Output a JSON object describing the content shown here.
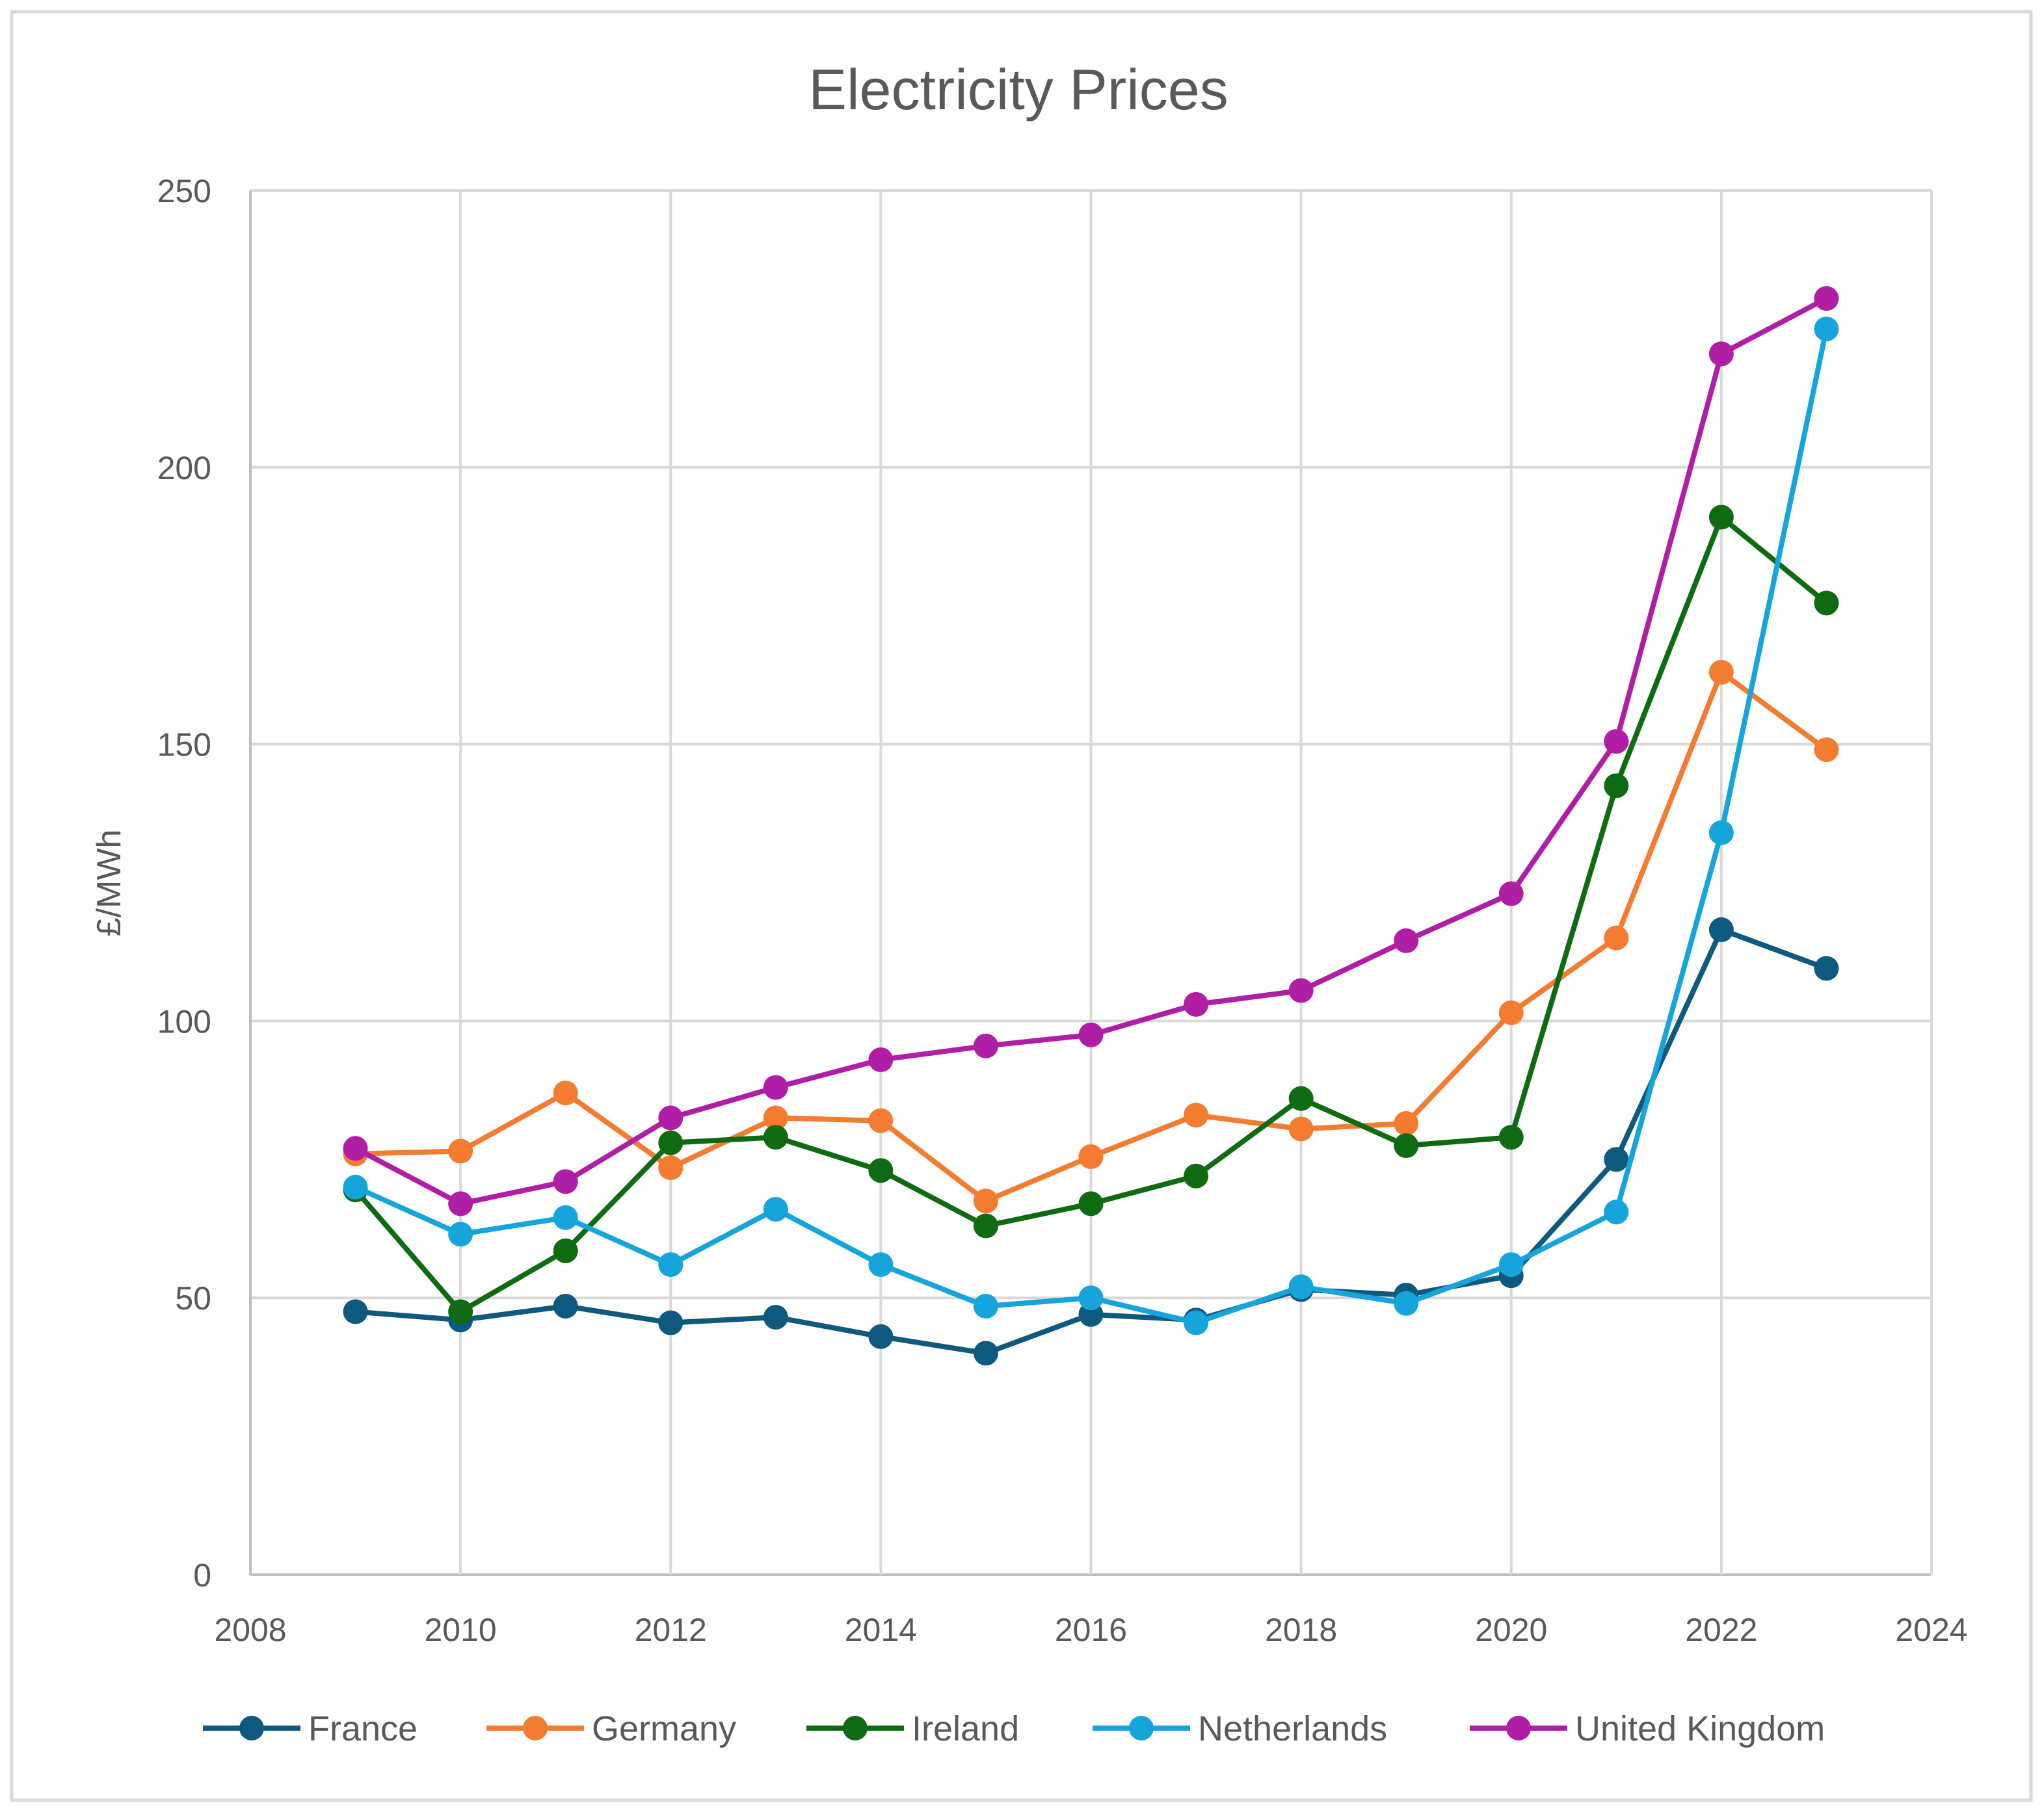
{
  "chart_data": {
    "type": "line",
    "title": "Electricity Prices",
    "xlabel": "",
    "ylabel": "£/MWh",
    "xlim": [
      2008,
      2024
    ],
    "ylim": [
      0,
      250
    ],
    "x_ticks": [
      2008,
      2010,
      2012,
      2014,
      2016,
      2018,
      2020,
      2022,
      2024
    ],
    "y_ticks": [
      0,
      50,
      100,
      150,
      200,
      250
    ],
    "grid": true,
    "legend_position": "bottom",
    "x": [
      2009,
      2010,
      2011,
      2012,
      2013,
      2014,
      2015,
      2016,
      2017,
      2018,
      2019,
      2020,
      2021,
      2022,
      2023
    ],
    "series": [
      {
        "name": "France",
        "color": "#0e5a7e",
        "values": [
          47.5,
          46,
          48.5,
          45.5,
          46.5,
          43,
          40,
          47,
          46,
          51.5,
          50.5,
          54,
          75,
          116.5,
          109.5
        ]
      },
      {
        "name": "Germany",
        "color": "#f47c30",
        "values": [
          76,
          76.5,
          87,
          73.5,
          82.5,
          82,
          67.5,
          75.5,
          83,
          80.5,
          81.5,
          101.5,
          115,
          163,
          149
        ]
      },
      {
        "name": "Ireland",
        "color": "#0e6b12",
        "values": [
          69.5,
          47.5,
          58.5,
          78,
          79,
          73,
          63,
          67,
          72,
          86,
          77.5,
          79,
          142.5,
          191,
          175.5
        ]
      },
      {
        "name": "Netherlands",
        "color": "#16a5db",
        "values": [
          70,
          61.5,
          64.5,
          56,
          66,
          56,
          48.5,
          50,
          45.5,
          52,
          49,
          56,
          65.5,
          134,
          225
        ]
      },
      {
        "name": "United Kingdom",
        "color": "#b01ea6",
        "values": [
          77,
          67,
          71,
          82.5,
          88,
          93,
          95.5,
          97.5,
          103,
          105.5,
          114.5,
          123,
          150.5,
          220.5,
          230.5
        ]
      }
    ]
  }
}
